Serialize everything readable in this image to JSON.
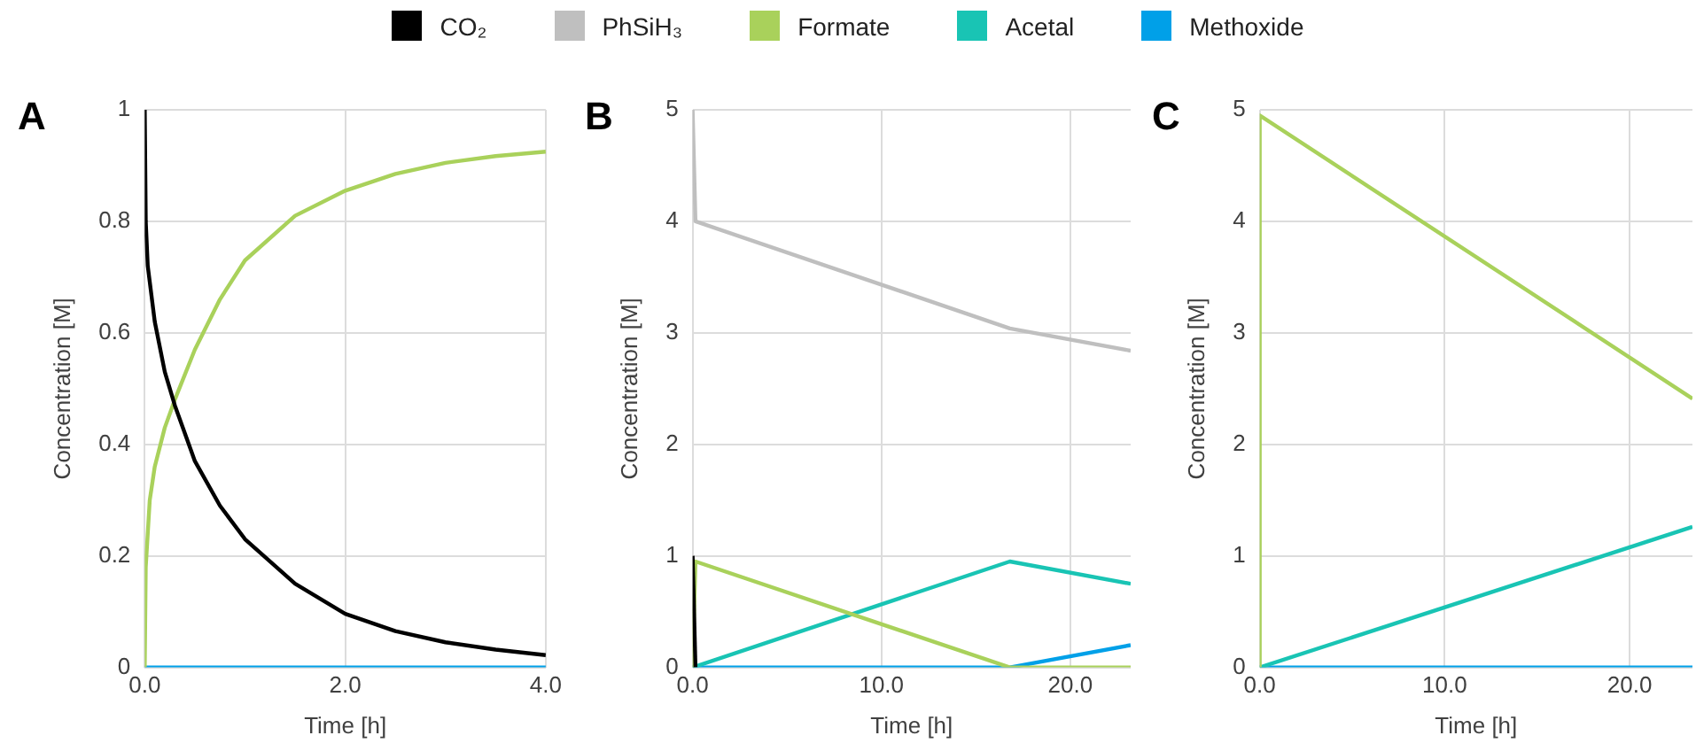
{
  "chart_data": [
    {
      "type": "line",
      "annotations": [
        "A"
      ],
      "xlabel": "Time [h]",
      "ylabel": "Concentration [M]",
      "xlim": [
        0,
        4
      ],
      "xticks": [
        {
          "value": 0,
          "label": "0.0"
        },
        {
          "value": 2,
          "label": "2.0"
        },
        {
          "value": 4,
          "label": "4.0"
        }
      ],
      "ylim": [
        0,
        1
      ],
      "yticks": [
        0,
        0.2,
        0.4,
        0.6,
        0.8,
        1
      ],
      "grid": true,
      "legend": "top",
      "marker": "none",
      "series": [
        {
          "name": "CO₂",
          "color": "#000000",
          "x": [
            0,
            0.01,
            0.03,
            0.1,
            0.2,
            0.3,
            0.5,
            0.75,
            1,
            1.5,
            2,
            2.5,
            3,
            3.5,
            4
          ],
          "values": [
            1,
            0.8,
            0.72,
            0.62,
            0.53,
            0.47,
            0.37,
            0.29,
            0.23,
            0.15,
            0.096,
            0.065,
            0.045,
            0.032,
            0.022
          ]
        },
        {
          "name": "Formate",
          "color": "#a9d15b",
          "x": [
            0,
            0.01,
            0.05,
            0.1,
            0.2,
            0.3,
            0.5,
            0.75,
            1,
            1.5,
            2,
            2.5,
            3,
            3.5,
            4
          ],
          "values": [
            0,
            0.18,
            0.3,
            0.36,
            0.43,
            0.48,
            0.57,
            0.66,
            0.73,
            0.81,
            0.855,
            0.885,
            0.905,
            0.917,
            0.925
          ]
        },
        {
          "name": "Methoxide",
          "color": "#00a0e8",
          "x": [
            0,
            4
          ],
          "values": [
            0,
            0
          ]
        }
      ]
    },
    {
      "type": "line",
      "annotations": [
        "B"
      ],
      "xlabel": "Time [h]",
      "ylabel": "Concentration [M]",
      "xlim": [
        0,
        23.2
      ],
      "xticks": [
        {
          "value": 0,
          "label": "0.0"
        },
        {
          "value": 10,
          "label": "10.0"
        },
        {
          "value": 20,
          "label": "20.0"
        }
      ],
      "ylim": [
        0,
        5
      ],
      "yticks": [
        0,
        1,
        2,
        3,
        4,
        5
      ],
      "grid": true,
      "legend": "top",
      "marker": "none",
      "series": [
        {
          "name": "CO₂",
          "color": "#000000",
          "x": [
            0,
            0.15
          ],
          "values": [
            1,
            0
          ]
        },
        {
          "name": "PhSiH₃",
          "color": "#bfbfbf",
          "x": [
            0,
            0.15,
            16.8,
            23.2
          ],
          "values": [
            5,
            4,
            3.04,
            2.84
          ]
        },
        {
          "name": "Formate",
          "color": "#a9d15b",
          "x": [
            0,
            0.15,
            16.8,
            23.2
          ],
          "values": [
            0,
            0.95,
            0,
            0
          ]
        },
        {
          "name": "Acetal",
          "color": "#19c4b4",
          "x": [
            0,
            16.8,
            23.2
          ],
          "values": [
            0,
            0.95,
            0.75
          ]
        },
        {
          "name": "Methoxide",
          "color": "#00a0e8",
          "x": [
            0,
            16.8,
            23.2
          ],
          "values": [
            0,
            0,
            0.2
          ]
        }
      ]
    },
    {
      "type": "line",
      "annotations": [
        "C"
      ],
      "xlabel": "Time [h]",
      "ylabel": "Concentration [M]",
      "xlim": [
        0,
        23.4
      ],
      "xticks": [
        {
          "value": 0,
          "label": "0.0"
        },
        {
          "value": 10,
          "label": "10.0"
        },
        {
          "value": 20,
          "label": "20.0"
        }
      ],
      "ylim": [
        0,
        5
      ],
      "yticks": [
        0,
        1,
        2,
        3,
        4,
        5
      ],
      "grid": true,
      "legend": "top",
      "marker": "none",
      "series": [
        {
          "name": "Formate",
          "color": "#a9d15b",
          "x": [
            0,
            0,
            23.4
          ],
          "values": [
            0,
            4.95,
            2.41
          ]
        },
        {
          "name": "Acetal",
          "color": "#19c4b4",
          "x": [
            0,
            23.4
          ],
          "values": [
            0,
            1.26
          ]
        },
        {
          "name": "Methoxide",
          "color": "#00a0e8",
          "x": [
            0,
            23.4
          ],
          "values": [
            0,
            0
          ]
        }
      ]
    }
  ]
}
